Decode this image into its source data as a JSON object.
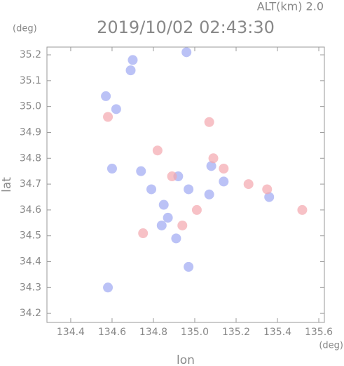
{
  "chart_data": {
    "type": "scatter",
    "title": "2019/10/02 02:43:30",
    "subtitle": "ALT(km) 2.0",
    "x_label": "lon",
    "y_label": "lat",
    "x_unit": "(deg)",
    "y_unit": "(deg)",
    "xlim": [
      134.285,
      135.627
    ],
    "ylim": [
      34.165,
      35.23
    ],
    "xticks": [
      134.4,
      134.6,
      134.8,
      {
        "value": 135.0,
        "label": "135.0"
      },
      135.2,
      135.4,
      135.6
    ],
    "yticks": [
      34.2,
      34.3,
      34.4,
      34.5,
      34.6,
      34.7,
      34.8,
      34.9,
      {
        "value": 35.0,
        "label": "35.0"
      },
      35.1,
      35.2
    ],
    "series": [
      {
        "color": "#9ea8f2",
        "x": [
          134.7,
          134.69,
          134.57,
          134.62,
          134.74,
          134.79,
          134.85,
          134.87,
          134.84,
          134.92,
          134.97,
          135.07,
          135.14,
          135.08,
          134.97,
          134.58,
          135.36,
          134.96,
          134.6,
          134.91
        ],
        "y": [
          35.18,
          35.14,
          35.04,
          34.99,
          34.75,
          34.68,
          34.62,
          34.57,
          34.54,
          34.73,
          34.68,
          34.66,
          34.71,
          34.77,
          34.38,
          34.3,
          34.65,
          35.21,
          34.76,
          34.49
        ]
      },
      {
        "color": "#f4a6ae",
        "x": [
          135.09,
          135.14,
          135.52,
          135.26,
          135.07,
          134.58,
          134.82,
          134.89,
          135.01,
          134.94,
          134.75,
          135.35
        ],
        "y": [
          34.8,
          34.76,
          34.6,
          34.7,
          34.94,
          34.96,
          34.83,
          34.73,
          34.6,
          34.54,
          34.51,
          34.68
        ]
      }
    ]
  }
}
